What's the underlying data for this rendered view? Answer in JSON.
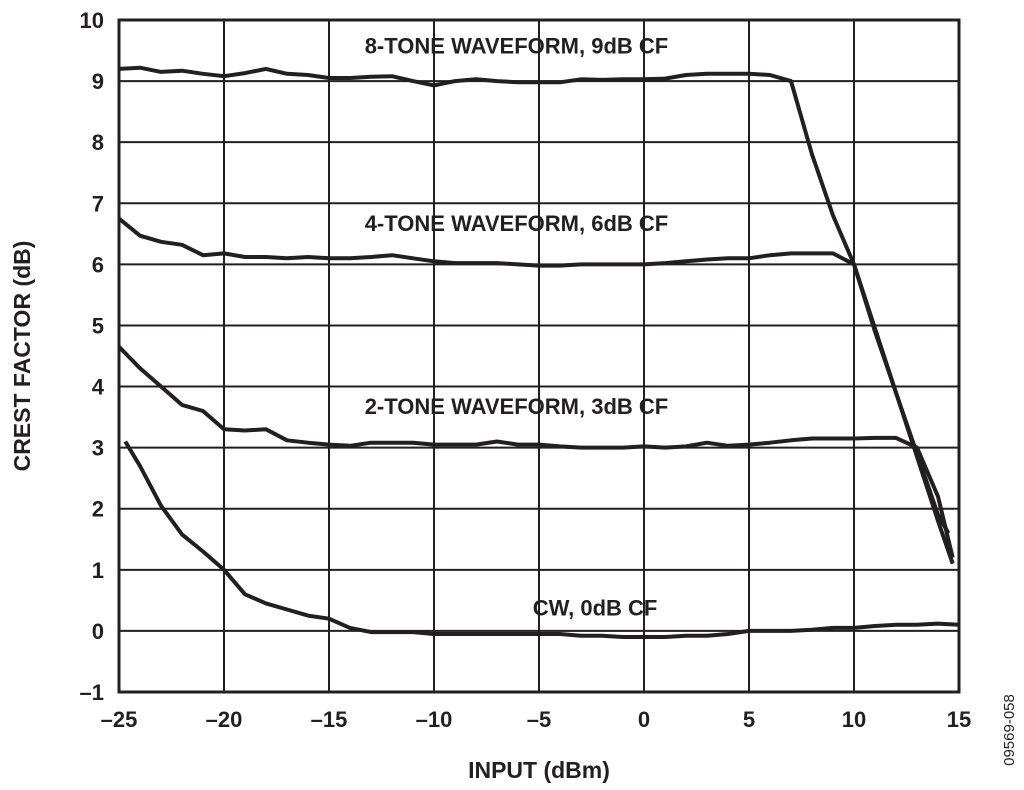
{
  "figure_id": "09569-058",
  "chart_data": {
    "type": "line",
    "title": "",
    "xlabel": "INPUT (dBm)",
    "ylabel": "CREST FACTOR (dB)",
    "xlim": [
      -25,
      15
    ],
    "ylim": [
      -1,
      10
    ],
    "xticks": [
      -25,
      -20,
      -15,
      -10,
      -5,
      0,
      5,
      10,
      15
    ],
    "xtick_labels": [
      "–25",
      "–20",
      "–15",
      "–10",
      "–5",
      "0",
      "5",
      "10",
      "15"
    ],
    "yticks": [
      -1,
      0,
      1,
      2,
      3,
      4,
      5,
      6,
      7,
      8,
      9,
      10
    ],
    "ytick_labels": [
      "–1",
      "0",
      "1",
      "2",
      "3",
      "4",
      "5",
      "6",
      "7",
      "8",
      "9",
      "10"
    ],
    "grid": true,
    "legend": "none",
    "line_color": "#231f20",
    "series": [
      {
        "name": "8-TONE WAVEFORM, 9dB CF",
        "label_pos": [
          -13.3,
          9.45
        ],
        "x": [
          -25,
          -24,
          -23,
          -22,
          -21,
          -20,
          -19,
          -18,
          -17,
          -16,
          -15,
          -14,
          -13,
          -12,
          -11,
          -10,
          -9,
          -8,
          -7,
          -6,
          -5,
          -4,
          -3,
          -2,
          -1,
          0,
          1,
          2,
          3,
          4,
          5,
          6,
          7,
          8,
          9,
          10,
          11,
          12,
          13,
          14,
          14.5
        ],
        "y": [
          9.2,
          9.22,
          9.15,
          9.17,
          9.12,
          9.08,
          9.13,
          9.2,
          9.12,
          9.1,
          9.05,
          9.05,
          9.07,
          9.08,
          9.0,
          8.93,
          9.0,
          9.03,
          9.0,
          8.98,
          8.98,
          8.98,
          9.03,
          9.02,
          9.03,
          9.03,
          9.04,
          9.1,
          9.12,
          9.12,
          9.12,
          9.1,
          9.0,
          7.8,
          6.8,
          6.0,
          4.95,
          3.9,
          2.9,
          1.9,
          1.6
        ]
      },
      {
        "name": "4-TONE WAVEFORM, 6dB CF",
        "label_pos": [
          -13.3,
          6.55
        ],
        "x": [
          -25,
          -24,
          -23,
          -22,
          -21,
          -20,
          -19,
          -18,
          -17,
          -16,
          -15,
          -14,
          -13,
          -12,
          -11,
          -10,
          -9,
          -8,
          -7,
          -6,
          -5,
          -4,
          -3,
          -2,
          -1,
          0,
          1,
          2,
          3,
          4,
          5,
          6,
          7,
          8,
          9,
          10,
          11,
          12,
          13,
          14,
          14.7
        ],
        "y": [
          6.75,
          6.47,
          6.37,
          6.32,
          6.15,
          6.18,
          6.12,
          6.12,
          6.1,
          6.12,
          6.1,
          6.1,
          6.12,
          6.15,
          6.1,
          6.05,
          6.02,
          6.02,
          6.02,
          6.0,
          5.98,
          5.98,
          6.0,
          6.0,
          6.0,
          6.0,
          6.02,
          6.05,
          6.08,
          6.1,
          6.1,
          6.15,
          6.18,
          6.18,
          6.18,
          6.0,
          4.9,
          3.9,
          2.85,
          1.8,
          1.1
        ]
      },
      {
        "name": "2-TONE WAVEFORM, 3dB CF",
        "label_pos": [
          -13.3,
          3.55
        ],
        "x": [
          -25,
          -24,
          -23,
          -22,
          -21,
          -20,
          -19,
          -18,
          -17,
          -16,
          -15,
          -14,
          -13,
          -12,
          -11,
          -10,
          -9,
          -8,
          -7,
          -6,
          -5,
          -4,
          -3,
          -2,
          -1,
          0,
          1,
          2,
          3,
          4,
          5,
          6,
          7,
          8,
          9,
          10,
          11,
          12,
          13,
          14,
          14.7
        ],
        "y": [
          4.65,
          4.3,
          4.0,
          3.7,
          3.6,
          3.3,
          3.28,
          3.3,
          3.12,
          3.08,
          3.05,
          3.03,
          3.08,
          3.08,
          3.08,
          3.05,
          3.05,
          3.05,
          3.1,
          3.05,
          3.05,
          3.02,
          3.0,
          3.0,
          3.0,
          3.02,
          3.0,
          3.02,
          3.08,
          3.03,
          3.05,
          3.08,
          3.12,
          3.15,
          3.15,
          3.15,
          3.16,
          3.16,
          3.0,
          2.2,
          1.2
        ]
      },
      {
        "name": "CW, 0dB CF",
        "label_pos": [
          -5.3,
          0.25
        ],
        "x": [
          -24.7,
          -24,
          -23,
          -22,
          -21,
          -20,
          -19,
          -18,
          -17,
          -16,
          -15,
          -14,
          -13,
          -12,
          -11,
          -10,
          -9,
          -8,
          -7,
          -6,
          -5,
          -4,
          -3,
          -2,
          -1,
          0,
          1,
          2,
          3,
          4,
          5,
          6,
          7,
          8,
          9,
          10,
          11,
          12,
          13,
          14,
          15
        ],
        "y": [
          3.1,
          2.7,
          2.05,
          1.58,
          1.3,
          1.0,
          0.6,
          0.45,
          0.35,
          0.25,
          0.2,
          0.05,
          -0.02,
          -0.02,
          -0.02,
          -0.05,
          -0.05,
          -0.05,
          -0.05,
          -0.05,
          -0.05,
          -0.05,
          -0.08,
          -0.08,
          -0.1,
          -0.1,
          -0.1,
          -0.08,
          -0.08,
          -0.05,
          0.0,
          0.0,
          0.0,
          0.02,
          0.05,
          0.05,
          0.08,
          0.1,
          0.1,
          0.12,
          0.1
        ]
      }
    ]
  }
}
